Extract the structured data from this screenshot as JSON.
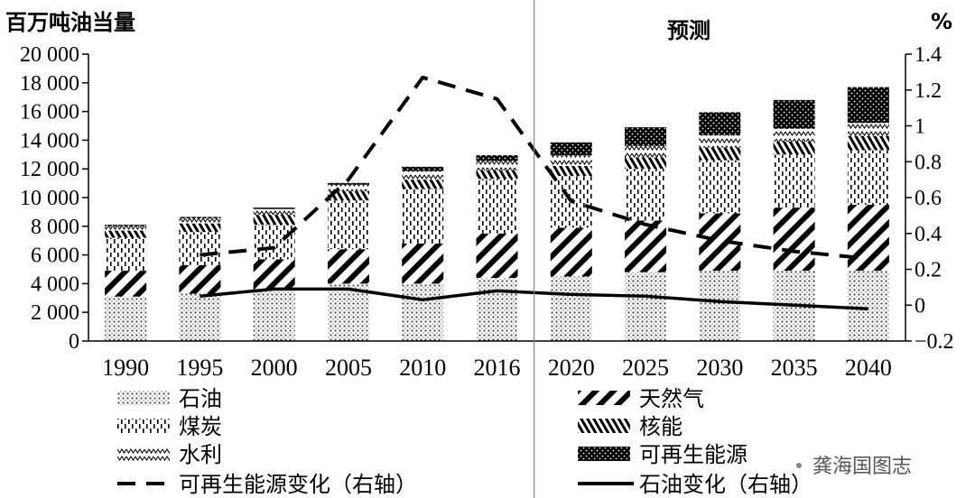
{
  "chart_data": {
    "type": "bar",
    "stacked": true,
    "y_left_title": "百万吨油当量",
    "y_right_title": "%",
    "forecast_label": "预测",
    "categories": [
      "1990",
      "1995",
      "2000",
      "2005",
      "2010",
      "2016",
      "2020",
      "2025",
      "2030",
      "2035",
      "2040"
    ],
    "forecast_start_category": "2020",
    "ylim": [
      0,
      20000
    ],
    "y_ticks": [
      "0",
      "2 000",
      "4 000",
      "6 000",
      "8 000",
      "10 000",
      "12 000",
      "14 000",
      "16 000",
      "18 000",
      "20 000"
    ],
    "y2lim": [
      -0.2,
      1.4
    ],
    "y2_ticks": [
      "−0.2",
      "0",
      "0.2",
      "0.4",
      "0.6",
      "0.8",
      "1",
      "1.2",
      "1.4"
    ],
    "series": [
      {
        "name": "石油",
        "axis": "left",
        "kind": "bar",
        "pattern": "dots",
        "values": [
          3100,
          3300,
          3600,
          4000,
          4000,
          4400,
          4500,
          4800,
          4900,
          4900,
          4900
        ]
      },
      {
        "name": "天然气",
        "axis": "left",
        "kind": "bar",
        "pattern": "diagonal",
        "values": [
          1800,
          2000,
          2100,
          2400,
          2800,
          3100,
          3400,
          3600,
          4000,
          4400,
          4600
        ]
      },
      {
        "name": "煤炭",
        "axis": "left",
        "kind": "bar",
        "pattern": "vdash",
        "values": [
          2300,
          2300,
          2400,
          3400,
          3800,
          3800,
          3600,
          3600,
          3700,
          3700,
          3800
        ]
      },
      {
        "name": "核能",
        "axis": "left",
        "kind": "bar",
        "pattern": "hatch",
        "values": [
          500,
          600,
          700,
          650,
          650,
          600,
          700,
          800,
          900,
          900,
          1000
        ]
      },
      {
        "name": "水利",
        "axis": "left",
        "kind": "bar",
        "pattern": "zigzag",
        "values": [
          300,
          350,
          400,
          450,
          600,
          650,
          750,
          800,
          850,
          900,
          900
        ]
      },
      {
        "name": "可再生能源",
        "axis": "left",
        "kind": "bar",
        "pattern": "dense",
        "values": [
          100,
          100,
          100,
          120,
          300,
          400,
          900,
          1300,
          1600,
          2000,
          2500
        ]
      },
      {
        "name": "可再生能源变化（右轴）",
        "axis": "right",
        "kind": "line",
        "style": "dashed",
        "values": [
          null,
          0.28,
          0.32,
          0.7,
          1.27,
          1.15,
          0.58,
          0.45,
          0.36,
          0.3,
          0.26
        ]
      },
      {
        "name": "石油变化（右轴）",
        "axis": "right",
        "kind": "line",
        "style": "solid",
        "values": [
          null,
          0.05,
          0.09,
          0.09,
          0.03,
          0.08,
          0.06,
          0.05,
          0.02,
          0.0,
          -0.02
        ]
      }
    ]
  },
  "legend": [
    {
      "label": "石油",
      "pattern": "dots"
    },
    {
      "label": "天然气",
      "pattern": "diagonal"
    },
    {
      "label": "煤炭",
      "pattern": "vdash"
    },
    {
      "label": "核能",
      "pattern": "hatch"
    },
    {
      "label": "水利",
      "pattern": "zigzag"
    },
    {
      "label": "可再生能源",
      "pattern": "dense"
    },
    {
      "label": "可再生能源变化（右轴）",
      "pattern": "dashed-line"
    },
    {
      "label": "石油变化（右轴）",
      "pattern": "solid-line"
    }
  ],
  "watermark": {
    "text": "龚海国图志"
  }
}
